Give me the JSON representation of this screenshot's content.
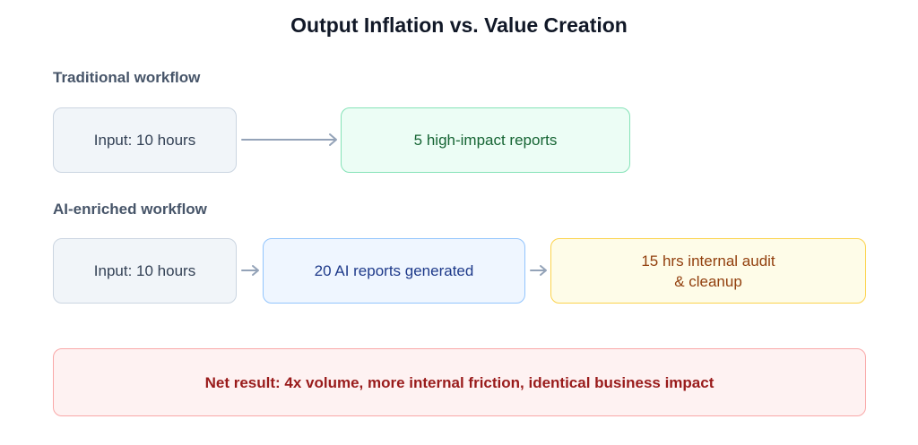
{
  "title": "Output Inflation vs. Value Creation",
  "traditional": {
    "heading": "Traditional workflow",
    "input": "Input: 10 hours",
    "output": "5 high-impact reports"
  },
  "ai": {
    "heading": "AI-enriched workflow",
    "input": "Input: 10 hours",
    "output": "20 AI reports generated",
    "cost": [
      "15 hrs internal audit",
      "& cleanup"
    ]
  },
  "result": "Net result: 4x volume, more internal friction, identical business impact"
}
